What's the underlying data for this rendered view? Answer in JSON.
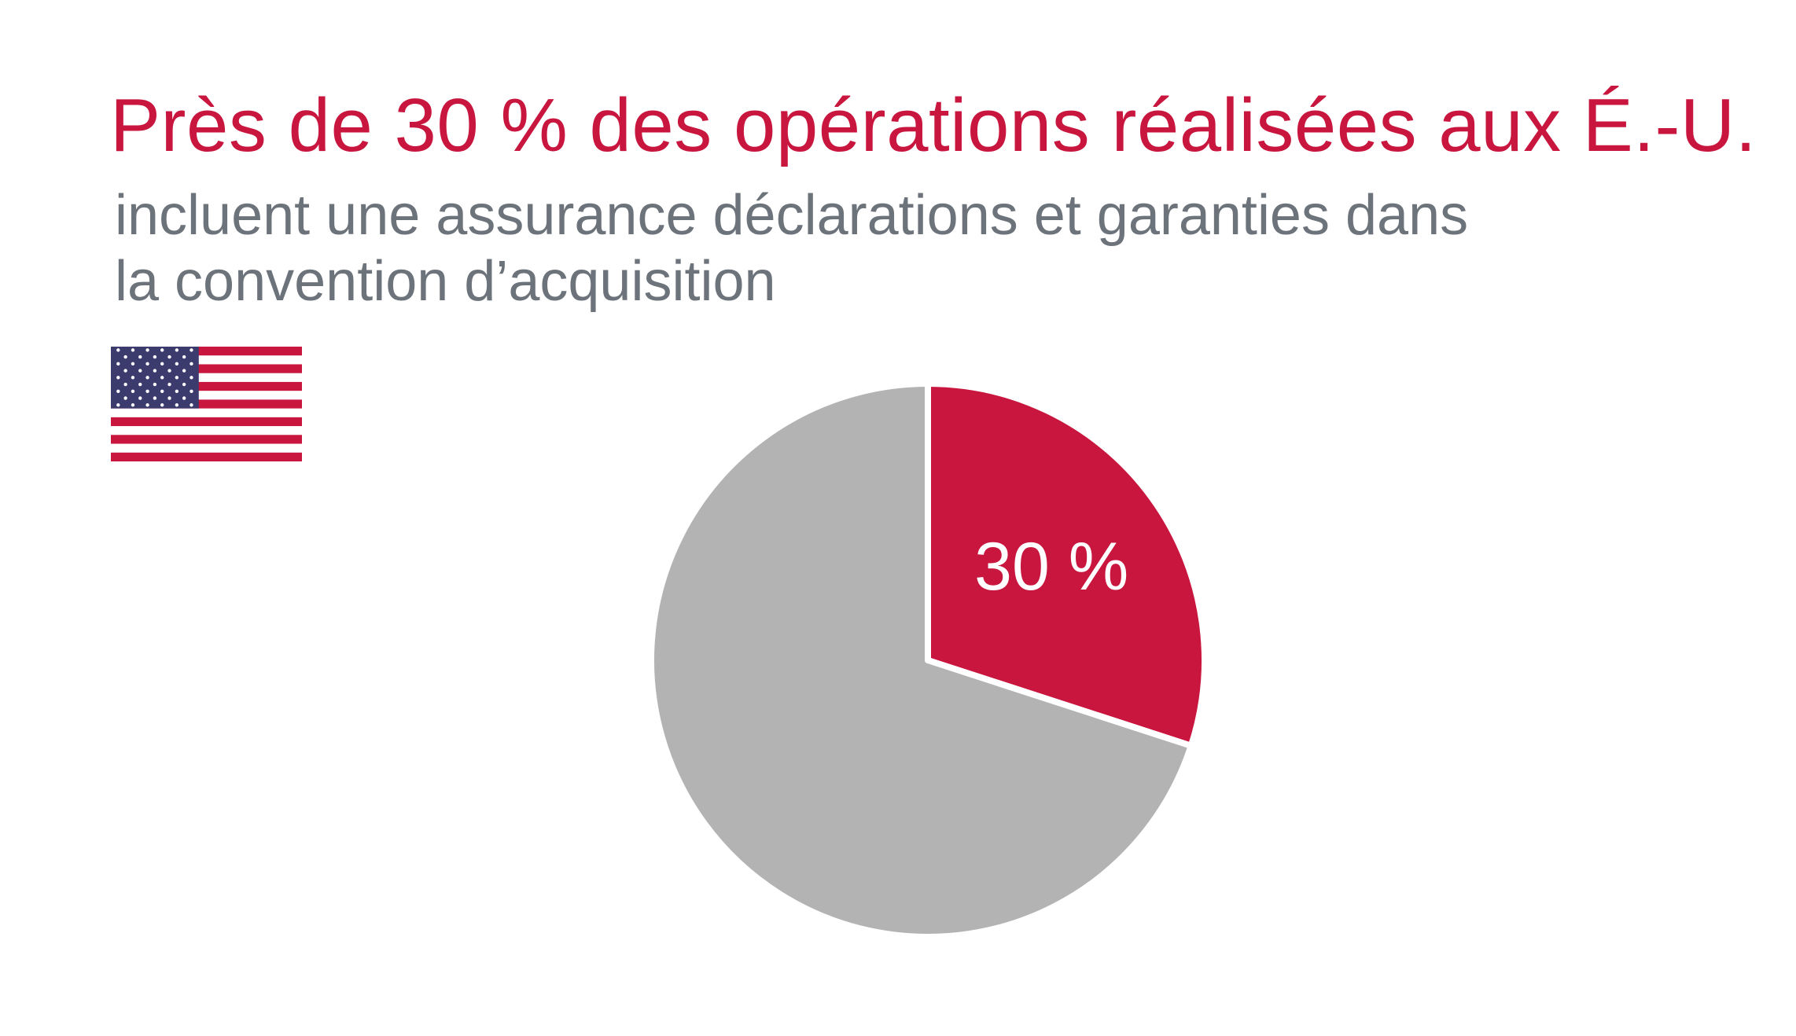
{
  "header": {
    "title": "Près de 30 % des opérations réalisées aux É.-U.",
    "subtitle_line1": "incluent une assurance déclarations et garanties dans",
    "subtitle_line2": "la convention d’acquisition"
  },
  "flag": {
    "icon": "us-flag-icon"
  },
  "colors": {
    "accent": "#c8163e",
    "remainder": "#b3b3b3",
    "subtitle": "#6c737a",
    "flag_blue": "#3b3b6d",
    "flag_red": "#c8163e"
  },
  "chart_data": {
    "type": "pie",
    "title": "Près de 30 % des opérations réalisées aux É.-U.",
    "slices": [
      {
        "value": 30,
        "label": "30 %",
        "color": "#c8163e"
      },
      {
        "value": 70,
        "label": "",
        "color": "#b3b3b3"
      }
    ],
    "start_angle": "top (12 o'clock), clockwise",
    "legend": "none"
  }
}
